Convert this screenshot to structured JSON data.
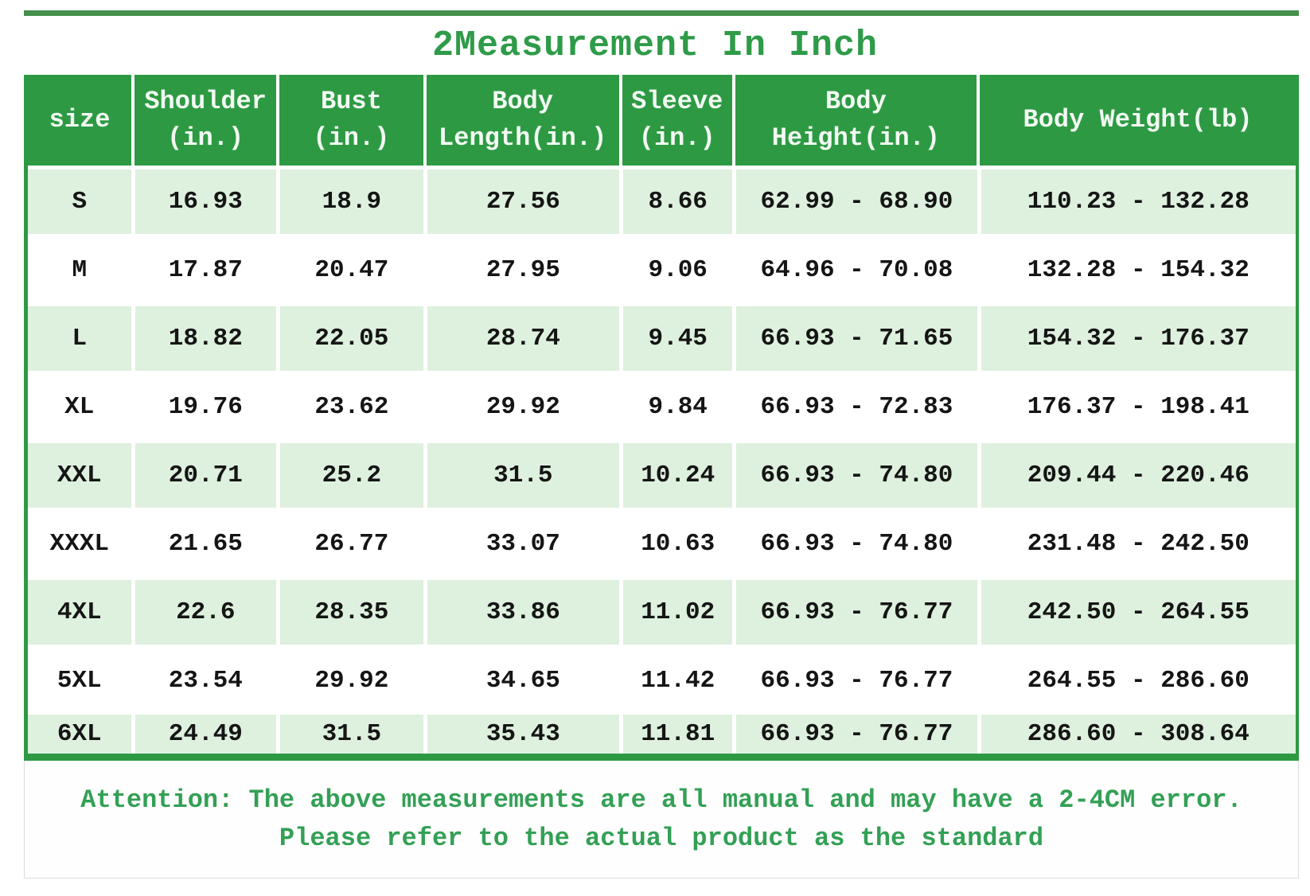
{
  "title": "2Measurement In Inch",
  "colors": {
    "header_green": "#2d9a43",
    "row_light_green": "#def0de",
    "title_green": "#2e9b48",
    "note_green": "#33a055",
    "top_rule_green": "#44904c"
  },
  "table": {
    "headers": [
      "size",
      "Shoulder\n(in.)",
      "Bust\n(in.)",
      "Body\nLength(in.)",
      "Sleeve\n(in.)",
      "Body\nHeight(in.)",
      "Body Weight(lb)"
    ],
    "rows": [
      {
        "cells": [
          "S",
          "16.93",
          "18.9",
          "27.56",
          "8.66",
          "62.99 - 68.90",
          "110.23 - 132.28"
        ]
      },
      {
        "cells": [
          "M",
          "17.87",
          "20.47",
          "27.95",
          "9.06",
          "64.96 - 70.08",
          "132.28 - 154.32"
        ]
      },
      {
        "cells": [
          "L",
          "18.82",
          "22.05",
          "28.74",
          "9.45",
          "66.93 - 71.65",
          "154.32 - 176.37"
        ]
      },
      {
        "cells": [
          "XL",
          "19.76",
          "23.62",
          "29.92",
          "9.84",
          "66.93 - 72.83",
          "176.37 - 198.41"
        ]
      },
      {
        "cells": [
          "XXL",
          "20.71",
          "25.2",
          "31.5",
          "10.24",
          "66.93 - 74.80",
          "209.44 - 220.46"
        ]
      },
      {
        "cells": [
          "XXXL",
          "21.65",
          "26.77",
          "33.07",
          "10.63",
          "66.93 - 74.80",
          "231.48 - 242.50"
        ]
      },
      {
        "cells": [
          "4XL",
          "22.6",
          "28.35",
          "33.86",
          "11.02",
          "66.93 - 76.77",
          "242.50 - 264.55"
        ]
      },
      {
        "cells": [
          "5XL",
          "23.54",
          "29.92",
          "34.65",
          "11.42",
          "66.93 - 76.77",
          "264.55 - 286.60"
        ]
      },
      {
        "cells": [
          "6XL",
          "24.49",
          "31.5",
          "35.43",
          "11.81",
          "66.93 - 76.77",
          "286.60 - 308.64"
        ]
      }
    ]
  },
  "attention": {
    "line1": "Attention: The above measurements are all manual and may have a 2-4CM error.",
    "line2": "Please refer to the actual product as the standard"
  }
}
